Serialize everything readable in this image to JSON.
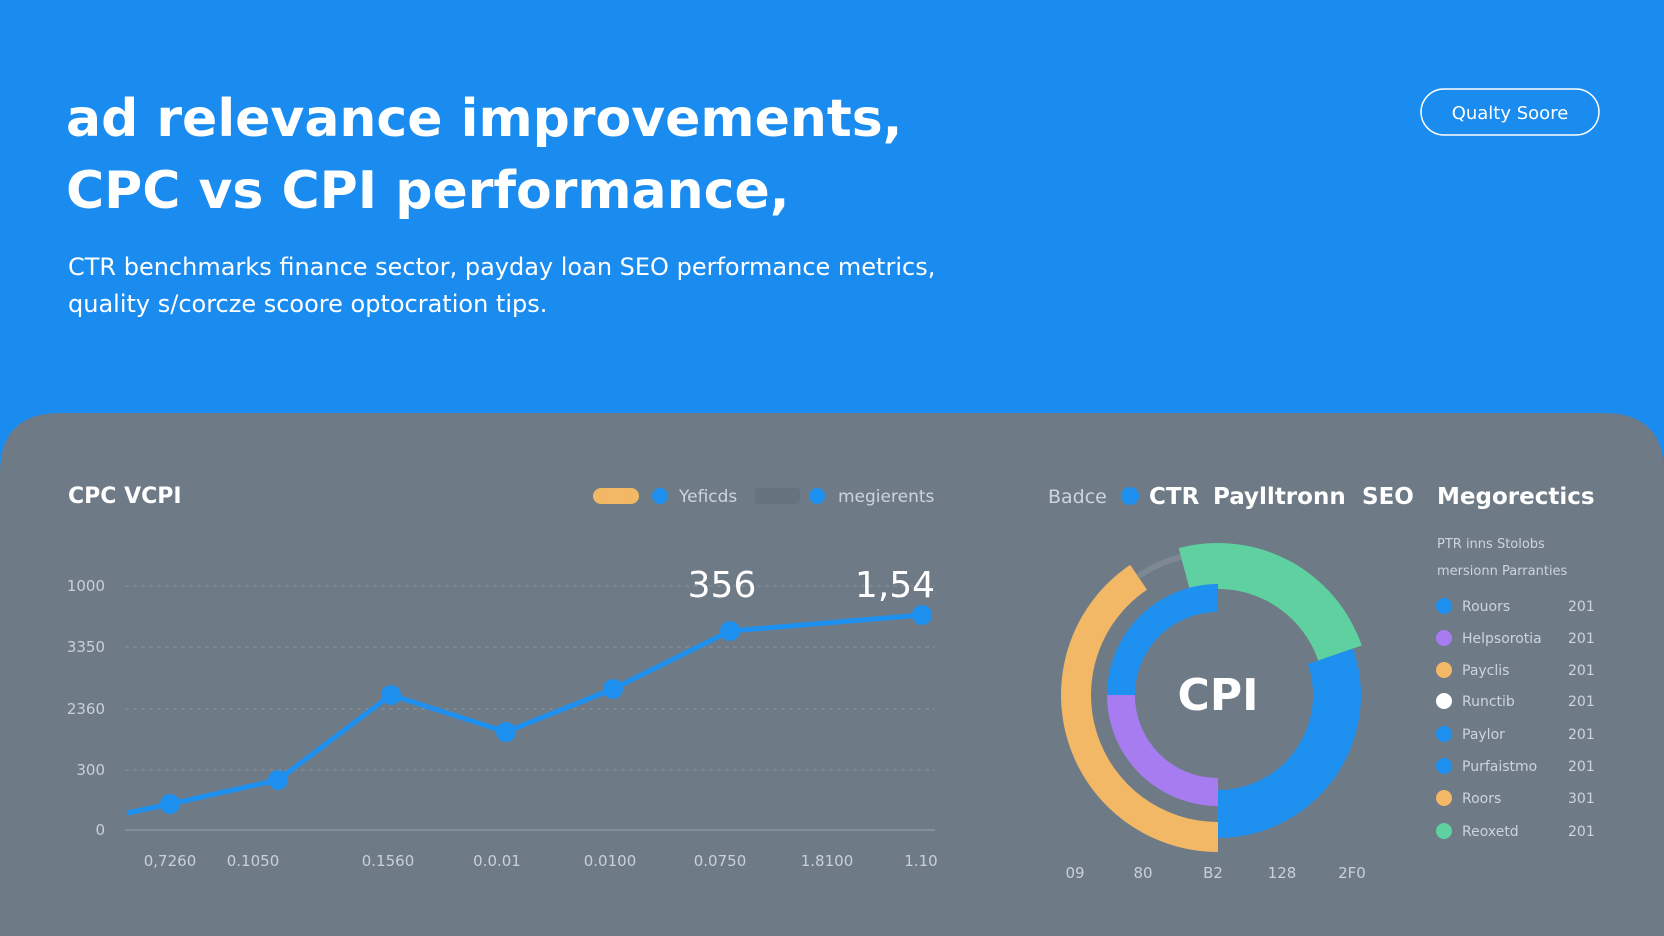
{
  "header": {
    "title_lines": [
      "ad relevance improvements,",
      "CPC vs CPI performance,"
    ],
    "subtitle_lines": [
      "CTR benchmarks finance sector, payday loan SEO performance metrics,",
      "quality s/corcze scoore optocration tips."
    ],
    "button": "Qualty Soore"
  },
  "line_panel": {
    "title": "CPC VCPI",
    "legend": [
      "Yeficds",
      "megierents"
    ],
    "y_labels": [
      "1000",
      "3350",
      "2360",
      "300",
      "0"
    ],
    "x_labels": [
      "0,7260",
      "0.1050",
      "0.1560",
      "0.0.01",
      "0.0100",
      "0.0750",
      "1.8100",
      "1.10"
    ],
    "callouts": [
      "356",
      "1,54"
    ]
  },
  "donut_panel": {
    "header": [
      "Badce",
      "CTR",
      "Paylltronn",
      "SEO",
      "Megorectics"
    ],
    "center": "CPI",
    "note_lines": [
      "PTR inns Stolobs",
      "mersionn Parranties"
    ],
    "legend": [
      {
        "label": "Rouors",
        "value": "201"
      },
      {
        "label": "Helpsorotia",
        "value": "201"
      },
      {
        "label": "Payclis",
        "value": "201"
      },
      {
        "label": "Runctib",
        "value": "201"
      },
      {
        "label": "Paylor",
        "value": "201"
      },
      {
        "label": "Purfaistmo",
        "value": "201"
      },
      {
        "label": "Roors",
        "value": "301"
      },
      {
        "label": "Reoxetd",
        "value": "201"
      }
    ],
    "x_labels": [
      "09",
      "80",
      "B2",
      "128",
      "2F0"
    ]
  }
}
